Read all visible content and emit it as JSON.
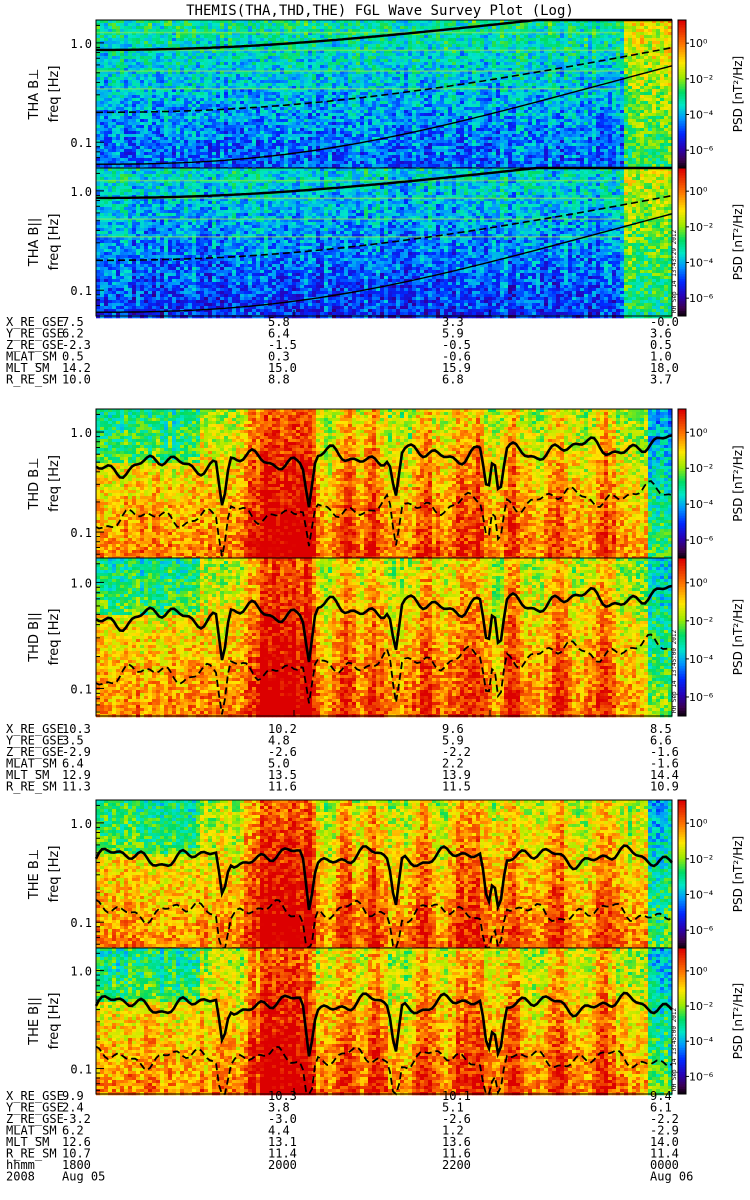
{
  "title": "THEMIS(THA,THD,THE) FGL Wave Survey Plot (Log)",
  "colorbar": {
    "label": "PSD [nT²/Hz]",
    "ticks": [
      "10⁰",
      "10⁻²",
      "10⁻⁴",
      "10⁻⁶"
    ],
    "tick_exponents": [
      0,
      -2,
      -4,
      -6
    ],
    "range_exponents": [
      -7,
      1.3
    ]
  },
  "y_axis": {
    "label": "freq [Hz]",
    "ticks": [
      "1.0",
      "0.1"
    ],
    "tick_values": [
      1.0,
      0.1
    ],
    "range": [
      0.055,
      1.7
    ],
    "scale": "log"
  },
  "stamps": [
    "RH Sep 14 13:43:29 2012",
    "RH Sep 14 13:45:00 2012"
  ],
  "chart_data": [
    {
      "type": "heatmap",
      "probe": "THA",
      "panels": [
        {
          "label": "THA B⊥",
          "intensity": "low-blue-green"
        },
        {
          "label": "THA B||",
          "intensity": "low-blue"
        }
      ],
      "ephemeris": [
        {
          "name": "X_RE_GSE",
          "values": [
            "7.5",
            "5.8",
            "3.3",
            "-0.0"
          ]
        },
        {
          "name": "Y_RE_GSE",
          "values": [
            "6.2",
            "6.4",
            "5.9",
            "3.6"
          ]
        },
        {
          "name": "Z_RE_GSE",
          "values": [
            "-2.3",
            "-1.5",
            "-0.5",
            "0.5"
          ]
        },
        {
          "name": "MLAT_SM",
          "values": [
            "0.5",
            "0.3",
            "-0.6",
            "1.0"
          ]
        },
        {
          "name": "MLT_SM",
          "values": [
            "14.2",
            "15.0",
            "15.9",
            "18.0"
          ]
        },
        {
          "name": "R_RE_SM",
          "values": [
            "10.0",
            "8.8",
            "6.8",
            "3.7"
          ]
        }
      ]
    },
    {
      "type": "heatmap",
      "probe": "THD",
      "panels": [
        {
          "label": "THD B⊥",
          "intensity": "high-red-orange"
        },
        {
          "label": "THD B||",
          "intensity": "high-red-orange"
        }
      ],
      "ephemeris": [
        {
          "name": "X_RE_GSE",
          "values": [
            "10.3",
            "10.2",
            "9.6",
            "8.5"
          ]
        },
        {
          "name": "Y_RE_GSE",
          "values": [
            "3.5",
            "4.8",
            "5.9",
            "6.6"
          ]
        },
        {
          "name": "Z_RE_GSE",
          "values": [
            "-2.9",
            "-2.6",
            "-2.2",
            "-1.6"
          ]
        },
        {
          "name": "MLAT_SM",
          "values": [
            "6.4",
            "5.0",
            "2.2",
            "-1.6"
          ]
        },
        {
          "name": "MLT_SM",
          "values": [
            "12.9",
            "13.5",
            "13.9",
            "14.4"
          ]
        },
        {
          "name": "R_RE_SM",
          "values": [
            "11.3",
            "11.6",
            "11.5",
            "10.9"
          ]
        }
      ]
    },
    {
      "type": "heatmap",
      "probe": "THE",
      "panels": [
        {
          "label": "THE B⊥",
          "intensity": "high-red-orange"
        },
        {
          "label": "THE B||",
          "intensity": "high-red-orange"
        }
      ],
      "ephemeris": [
        {
          "name": "X_RE_GSE",
          "values": [
            "9.9",
            "10.3",
            "10.1",
            "9.4"
          ]
        },
        {
          "name": "Y_RE_GSE",
          "values": [
            "2.4",
            "3.8",
            "5.1",
            "6.1"
          ]
        },
        {
          "name": "Z_RE_GSE",
          "values": [
            "-3.2",
            "-3.0",
            "-2.6",
            "-2.2"
          ]
        },
        {
          "name": "MLAT_SM",
          "values": [
            "6.2",
            "4.4",
            "1.2",
            "-2.9"
          ]
        },
        {
          "name": "MLT_SM",
          "values": [
            "12.6",
            "13.1",
            "13.6",
            "14.0"
          ]
        },
        {
          "name": "R_RE_SM",
          "values": [
            "10.7",
            "11.4",
            "11.6",
            "11.4"
          ]
        },
        {
          "name": "hhmm",
          "values": [
            "1800",
            "2000",
            "2200",
            "0000"
          ]
        }
      ],
      "date_row": {
        "name": "2008",
        "values": [
          "Aug 05",
          "",
          "",
          "Aug 06"
        ]
      }
    }
  ],
  "x_axis": {
    "times": [
      "1800",
      "2000",
      "2200",
      "0000"
    ]
  }
}
